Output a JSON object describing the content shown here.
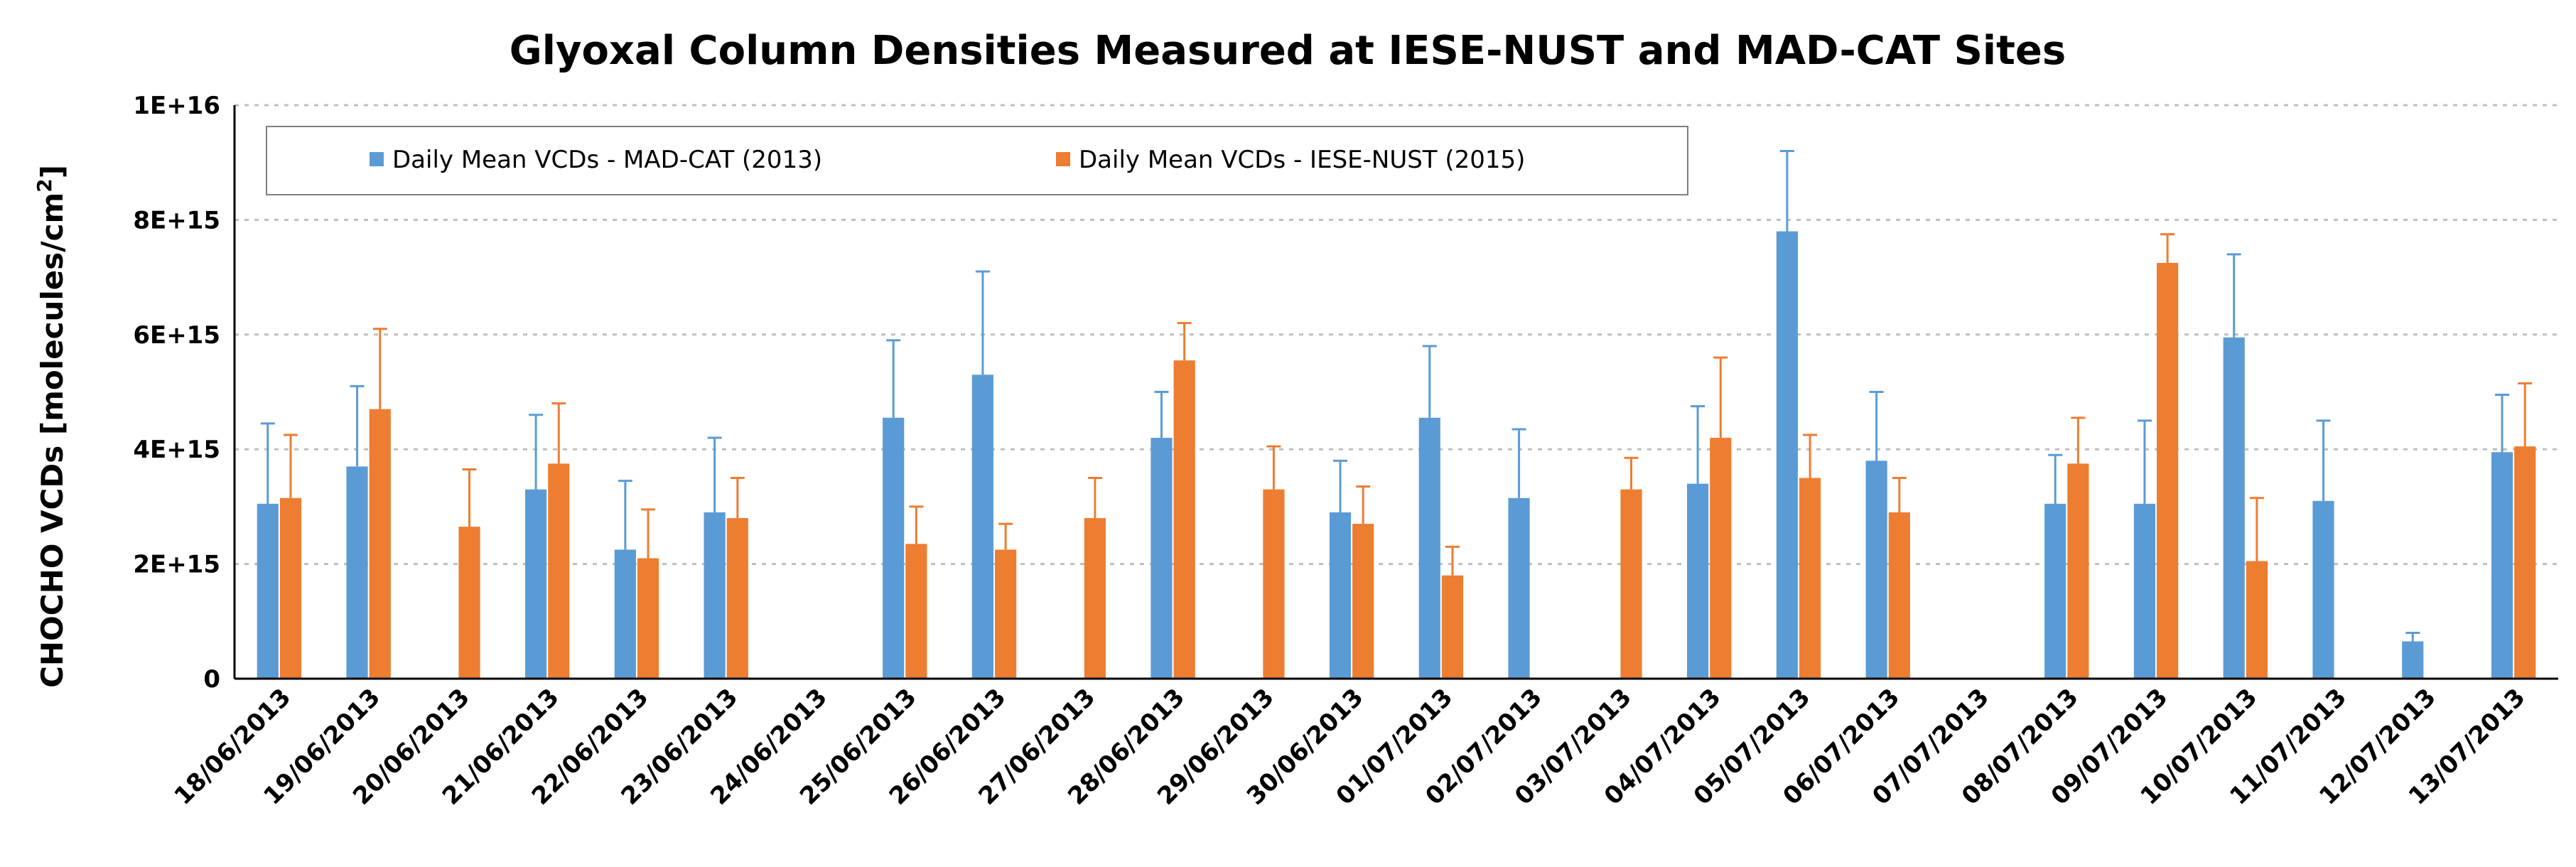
{
  "chart_data": {
    "type": "bar",
    "title": "Glyoxal Column Densities Measured at IESE-NUST and MAD-CAT Sites",
    "xlabel": "",
    "ylabel_main": "CHOCHO VCDs [molecules/cm",
    "ylabel_sup": "2",
    "ylabel_end": "]",
    "ylim": [
      0,
      1e+16
    ],
    "yticks": [
      0,
      2000000000000000.0,
      4000000000000000.0,
      6000000000000000.0,
      8000000000000000.0,
      1e+16
    ],
    "ytick_labels": [
      "0",
      "2E+15",
      "4E+15",
      "6E+15",
      "8E+15",
      "1E+16"
    ],
    "grid": true,
    "legend_position": "top-left",
    "categories": [
      "18/06/2013",
      "19/06/2013",
      "20/06/2013",
      "21/06/2013",
      "22/06/2013",
      "23/06/2013",
      "24/06/2013",
      "25/06/2013",
      "26/06/2013",
      "27/06/2013",
      "28/06/2013",
      "29/06/2013",
      "30/06/2013",
      "01/07/2013",
      "02/07/2013",
      "03/07/2013",
      "04/07/2013",
      "05/07/2013",
      "06/07/2013",
      "07/07/2013",
      "08/07/2013",
      "09/07/2013",
      "10/07/2013",
      "11/07/2013",
      "12/07/2013",
      "13/07/2013"
    ],
    "series": [
      {
        "name": "Daily Mean VCDs - MAD-CAT (2013)",
        "color": "#5b9bd5",
        "values": [
          3050000000000000.0,
          3700000000000000.0,
          null,
          3300000000000000.0,
          2250000000000000.0,
          2900000000000000.0,
          null,
          4550000000000000.0,
          5300000000000000.0,
          null,
          4200000000000000.0,
          null,
          2900000000000000.0,
          4550000000000000.0,
          3150000000000000.0,
          null,
          3400000000000000.0,
          7800000000000000.0,
          3800000000000000.0,
          null,
          3050000000000000.0,
          3050000000000000.0,
          5950000000000000.0,
          3100000000000000.0,
          650000000000000.0,
          3950000000000000.0
        ],
        "errors": [
          1400000000000000.0,
          1400000000000000.0,
          null,
          1300000000000000.0,
          1200000000000000.0,
          1300000000000000.0,
          null,
          1350000000000000.0,
          1800000000000000.0,
          null,
          800000000000000.0,
          null,
          900000000000000.0,
          1250000000000000.0,
          1200000000000000.0,
          null,
          1350000000000000.0,
          1400000000000000.0,
          1200000000000000.0,
          null,
          850000000000000.0,
          1450000000000000.0,
          1450000000000000.0,
          1400000000000000.0,
          150000000000000.0,
          1000000000000000.0
        ]
      },
      {
        "name": "Daily Mean VCDs - IESE-NUST (2015)",
        "color": "#ed7d31",
        "values": [
          3150000000000000.0,
          4700000000000000.0,
          2650000000000000.0,
          3750000000000000.0,
          2100000000000000.0,
          2800000000000000.0,
          null,
          2350000000000000.0,
          2250000000000000.0,
          2800000000000000.0,
          5550000000000000.0,
          3300000000000000.0,
          2700000000000000.0,
          1800000000000000.0,
          null,
          3300000000000000.0,
          4200000000000000.0,
          3500000000000000.0,
          2900000000000000.0,
          null,
          3750000000000000.0,
          7250000000000000.0,
          2050000000000000.0,
          null,
          null,
          4050000000000000.0
        ],
        "errors": [
          1100000000000000.0,
          1400000000000000.0,
          1000000000000000.0,
          1050000000000000.0,
          850000000000000.0,
          700000000000000.0,
          null,
          650000000000000.0,
          450000000000000.0,
          700000000000000.0,
          650000000000000.0,
          750000000000000.0,
          650000000000000.0,
          500000000000000.0,
          null,
          550000000000000.0,
          1400000000000000.0,
          750000000000000.0,
          600000000000000.0,
          null,
          800000000000000.0,
          500000000000000.0,
          1100000000000000.0,
          null,
          null,
          1100000000000000.0
        ]
      }
    ]
  }
}
